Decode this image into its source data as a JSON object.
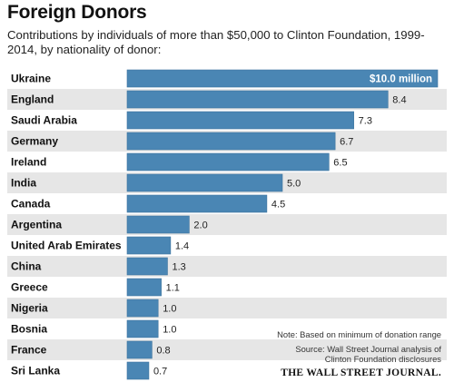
{
  "title": "Foreign Donors",
  "subtitle": "Contributions by individuals of more than $50,000 to Clinton Foundation, 1999-2014, by nationality of donor:",
  "notes": {
    "note": "Note: Based on minimum of donation range",
    "source_line1": "Source: Wall Street Journal analysis of",
    "source_line2": "Clinton Foundation disclosures",
    "publisher": "THE WALL STREET JOURNAL."
  },
  "colors": {
    "bar": "#4a86b4",
    "bar_edge": "#3c739d",
    "band_odd": "#ffffff",
    "band_even": "#e6e6e6"
  },
  "chart_data": {
    "type": "bar",
    "orientation": "horizontal",
    "title": "Foreign Donors",
    "subtitle": "Contributions by individuals of more than $50,000 to Clinton Foundation, 1999-2014, by nationality of donor:",
    "categories": [
      "Ukraine",
      "England",
      "Saudi Arabia",
      "Germany",
      "Ireland",
      "India",
      "Canada",
      "Argentina",
      "United Arab Emirates",
      "China",
      "Greece",
      "Nigeria",
      "Bosnia",
      "France",
      "Sri Lanka"
    ],
    "values": [
      10.0,
      8.4,
      7.3,
      6.7,
      6.5,
      5.0,
      4.5,
      2.0,
      1.4,
      1.3,
      1.1,
      1.0,
      1.0,
      0.8,
      0.7
    ],
    "value_labels": [
      "$10.0 million",
      "8.4",
      "7.3",
      "6.7",
      "6.5",
      "5.0",
      "4.5",
      "2.0",
      "1.4",
      "1.3",
      "1.1",
      "1.0",
      "1.0",
      "0.8",
      "0.7"
    ],
    "units": "$ million",
    "xlim": [
      0,
      10.0
    ],
    "grid": false,
    "legend": "none"
  }
}
